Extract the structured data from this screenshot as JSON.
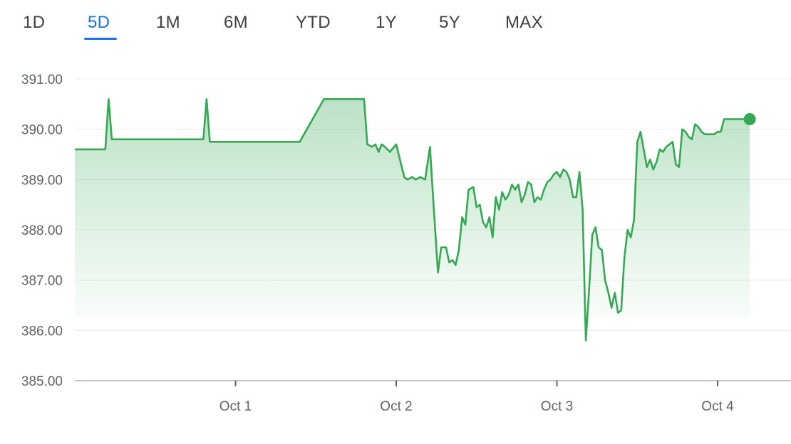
{
  "range_tabs": {
    "items": [
      "1D",
      "5D",
      "1M",
      "6M",
      "YTD",
      "1Y",
      "5Y",
      "MAX"
    ],
    "selected": "5D"
  },
  "colors": {
    "line": "#34a853",
    "accent": "#1a73e8"
  },
  "chart_data": {
    "type": "line",
    "title": "",
    "xlabel": "",
    "ylabel": "",
    "ylim": [
      385.0,
      391.0
    ],
    "y_ticks": [
      "391.00",
      "390.00",
      "389.00",
      "388.00",
      "387.00",
      "386.00",
      "385.00"
    ],
    "x_ticks": [
      "Oct 1",
      "Oct 2",
      "Oct 3",
      "Oct 4"
    ],
    "grid": true,
    "x": [
      0.0,
      0.19,
      0.21,
      0.23,
      0.8,
      0.82,
      0.84,
      1.4,
      1.55,
      1.8,
      1.82,
      1.85,
      1.87,
      1.89,
      1.91,
      1.93,
      1.96,
      2.0,
      2.05,
      2.07,
      2.1,
      2.12,
      2.15,
      2.18,
      2.21,
      2.23,
      2.26,
      2.28,
      2.31,
      2.33,
      2.35,
      2.37,
      2.39,
      2.41,
      2.43,
      2.45,
      2.48,
      2.5,
      2.52,
      2.54,
      2.56,
      2.58,
      2.6,
      2.62,
      2.64,
      2.66,
      2.68,
      2.7,
      2.72,
      2.74,
      2.76,
      2.78,
      2.8,
      2.82,
      2.84,
      2.86,
      2.88,
      2.9,
      2.92,
      2.94,
      2.96,
      2.98,
      3.0,
      3.02,
      3.04,
      3.06,
      3.08,
      3.1,
      3.12,
      3.14,
      3.16,
      3.18,
      3.2,
      3.22,
      3.24,
      3.26,
      3.28,
      3.3,
      3.32,
      3.34,
      3.36,
      3.38,
      3.4,
      3.42,
      3.44,
      3.46,
      3.48,
      3.5,
      3.52,
      3.54,
      3.56,
      3.58,
      3.6,
      3.62,
      3.64,
      3.66,
      3.68,
      3.7,
      3.72,
      3.74,
      3.76,
      3.78,
      3.8,
      3.82,
      3.84,
      3.86,
      3.88,
      3.9,
      3.92,
      3.94,
      3.96,
      3.98,
      4.0,
      4.02,
      4.04,
      4.06,
      4.1,
      4.14,
      4.2
    ],
    "values": [
      389.6,
      389.6,
      390.6,
      389.8,
      389.8,
      390.6,
      389.75,
      389.75,
      390.6,
      390.6,
      389.7,
      389.65,
      389.7,
      389.55,
      389.7,
      389.65,
      389.55,
      389.7,
      389.05,
      389.0,
      389.05,
      389.0,
      389.05,
      389.0,
      389.65,
      388.6,
      387.15,
      387.65,
      387.65,
      387.35,
      387.4,
      387.3,
      387.6,
      388.25,
      388.1,
      388.8,
      388.85,
      388.45,
      388.5,
      388.15,
      388.05,
      388.25,
      387.85,
      388.65,
      388.4,
      388.75,
      388.6,
      388.7,
      388.9,
      388.8,
      388.9,
      388.55,
      388.7,
      388.95,
      388.9,
      388.55,
      388.65,
      388.6,
      388.8,
      388.95,
      389.0,
      389.1,
      389.15,
      389.05,
      389.2,
      389.15,
      389.0,
      388.65,
      388.65,
      389.15,
      388.4,
      385.8,
      386.8,
      387.9,
      388.05,
      387.65,
      387.6,
      387.0,
      386.75,
      386.45,
      386.75,
      386.35,
      386.4,
      387.45,
      388.0,
      387.85,
      388.2,
      389.75,
      389.95,
      389.6,
      389.25,
      389.4,
      389.2,
      389.35,
      389.6,
      389.55,
      389.65,
      389.7,
      389.75,
      389.3,
      389.25,
      390.0,
      389.95,
      389.85,
      389.8,
      390.1,
      390.05,
      389.95,
      389.9,
      389.9,
      389.9,
      389.9,
      389.95,
      389.95,
      390.2,
      390.2,
      390.2,
      390.2,
      390.2
    ]
  }
}
